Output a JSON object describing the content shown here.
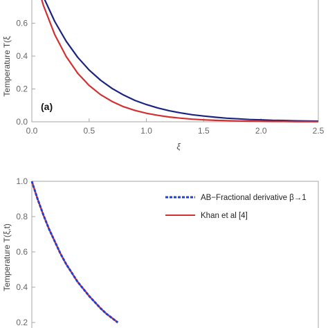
{
  "chart_data": [
    {
      "type": "line",
      "panel_label": "(a)",
      "xlabel": "ξ",
      "ylabel": "Temperature T(ξ",
      "xlim": [
        0,
        2.5
      ],
      "ylim": [
        0,
        0.75
      ],
      "x_ticks": [
        "0.0",
        "0.5",
        "1.0",
        "1.5",
        "2.0",
        "2.5"
      ],
      "y_ticks": [
        "0.0",
        "0.2",
        "0.4",
        "0.6"
      ],
      "grid": false,
      "series": [
        {
          "color": "#1a237e",
          "x": [
            0.0,
            0.1,
            0.2,
            0.3,
            0.4,
            0.5,
            0.6,
            0.7,
            0.8,
            0.9,
            1.0,
            1.1,
            1.2,
            1.3,
            1.4,
            1.5,
            1.6,
            1.7,
            1.8,
            1.9,
            2.0,
            2.1,
            2.2,
            2.3,
            2.4,
            2.5
          ],
          "y": [
            0.95,
            0.762,
            0.611,
            0.49,
            0.393,
            0.315,
            0.253,
            0.203,
            0.163,
            0.13,
            0.105,
            0.084,
            0.067,
            0.054,
            0.043,
            0.035,
            0.028,
            0.022,
            0.018,
            0.014,
            0.012,
            0.009,
            0.008,
            0.006,
            0.005,
            0.004
          ]
        },
        {
          "color": "#d32f2f",
          "x": [
            0.0,
            0.1,
            0.2,
            0.3,
            0.4,
            0.5,
            0.6,
            0.7,
            0.8,
            0.9,
            1.0,
            1.1,
            1.2,
            1.3,
            1.4,
            1.5,
            1.6,
            1.7,
            1.8,
            1.9,
            2.0,
            2.1,
            2.2,
            2.3,
            2.4,
            2.5
          ],
          "y": [
            0.95,
            0.71,
            0.531,
            0.397,
            0.296,
            0.221,
            0.165,
            0.124,
            0.092,
            0.069,
            0.052,
            0.039,
            0.029,
            0.022,
            0.016,
            0.012,
            0.009,
            0.007,
            0.005,
            0.004,
            0.003,
            0.002,
            0.002,
            0.001,
            0.001,
            0.001
          ]
        }
      ]
    },
    {
      "type": "line",
      "ylabel": "Temperature T(ξ,t)",
      "xlim": [
        0,
        2.5
      ],
      "ylim": [
        0.2,
        1.0
      ],
      "y_ticks": [
        "1.0",
        "0.8",
        "0.6",
        "0.4",
        "0.2"
      ],
      "grid": false,
      "legend_position": "top-right",
      "series": [
        {
          "name": "AB−Fractional derivative β→1",
          "color": "#1f3fd6",
          "dashed": true,
          "x": [
            0.0,
            0.05,
            0.1,
            0.15,
            0.2,
            0.25,
            0.3,
            0.35,
            0.4,
            0.45,
            0.5,
            0.55,
            0.6,
            0.65,
            0.7,
            0.75
          ],
          "y": [
            1.0,
            0.9,
            0.81,
            0.73,
            0.66,
            0.59,
            0.53,
            0.48,
            0.43,
            0.39,
            0.35,
            0.315,
            0.28,
            0.25,
            0.225,
            0.2
          ]
        },
        {
          "name": "Khan et al [4]",
          "color": "#d32f2f",
          "dashed": false,
          "x": [
            0.0,
            0.05,
            0.1,
            0.15,
            0.2,
            0.25,
            0.3,
            0.35,
            0.4,
            0.45,
            0.5,
            0.55,
            0.6,
            0.65,
            0.7,
            0.75
          ],
          "y": [
            1.0,
            0.9,
            0.81,
            0.73,
            0.66,
            0.59,
            0.53,
            0.48,
            0.43,
            0.39,
            0.35,
            0.315,
            0.28,
            0.25,
            0.225,
            0.2
          ]
        }
      ]
    }
  ]
}
